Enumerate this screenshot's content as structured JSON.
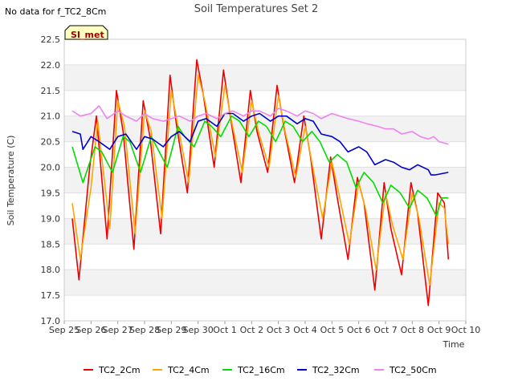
{
  "header": {
    "nodata_note": "No data for f_TC2_8Cm"
  },
  "badge": {
    "label": "SI_met",
    "bg": "#ffffc0",
    "text_color": "#990000"
  },
  "chart_data": {
    "type": "line",
    "title": "Soil Temperatures Set 2",
    "xlabel": "Time",
    "ylabel": "Soil Temperature (C)",
    "xlim": [
      0,
      15
    ],
    "ylim": [
      17.0,
      22.5
    ],
    "x_ticks": [
      {
        "value": 0,
        "label": "Sep 25"
      },
      {
        "value": 1,
        "label": "Sep 26"
      },
      {
        "value": 2,
        "label": "Sep 27"
      },
      {
        "value": 3,
        "label": "Sep 28"
      },
      {
        "value": 4,
        "label": "Sep 29"
      },
      {
        "value": 5,
        "label": "Sep 30"
      },
      {
        "value": 6,
        "label": "Oct 1"
      },
      {
        "value": 7,
        "label": "Oct 2"
      },
      {
        "value": 8,
        "label": "Oct 3"
      },
      {
        "value": 9,
        "label": "Oct 4"
      },
      {
        "value": 10,
        "label": "Oct 5"
      },
      {
        "value": 11,
        "label": "Oct 6"
      },
      {
        "value": 12,
        "label": "Oct 7"
      },
      {
        "value": 13,
        "label": "Oct 8"
      },
      {
        "value": 14,
        "label": "Oct 9"
      },
      {
        "value": 15,
        "label": "Oct 10"
      }
    ],
    "y_ticks": [
      "17.0",
      "17.5",
      "18.0",
      "18.5",
      "19.0",
      "19.5",
      "20.0",
      "20.5",
      "21.0",
      "21.5",
      "22.0",
      "22.5"
    ],
    "grid": "horizontal alternating bands",
    "legend_position": "bottom",
    "series": [
      {
        "name": "TC2_2Cm",
        "color": "#ee0000",
        "x": [
          0.3,
          0.55,
          0.95,
          1.2,
          1.6,
          1.95,
          2.2,
          2.6,
          2.95,
          3.2,
          3.6,
          3.95,
          4.2,
          4.6,
          4.95,
          5.2,
          5.6,
          5.95,
          6.2,
          6.6,
          6.95,
          7.2,
          7.6,
          7.95,
          8.2,
          8.6,
          8.95,
          9.2,
          9.6,
          9.95,
          10.2,
          10.6,
          10.95,
          11.2,
          11.6,
          11.95,
          12.2,
          12.6,
          12.95,
          13.2,
          13.6,
          13.95,
          14.2,
          14.35
        ],
        "y": [
          19.0,
          17.8,
          20.0,
          21.0,
          18.6,
          21.5,
          20.7,
          18.4,
          21.3,
          20.6,
          18.7,
          21.8,
          20.8,
          19.5,
          22.1,
          21.4,
          20.0,
          21.9,
          21.0,
          19.7,
          21.5,
          20.7,
          19.9,
          21.6,
          20.8,
          19.7,
          21.0,
          20.2,
          18.6,
          20.2,
          19.4,
          18.2,
          19.8,
          19.3,
          17.6,
          19.7,
          18.8,
          17.9,
          19.7,
          19.1,
          17.3,
          19.5,
          19.3,
          18.2
        ]
      },
      {
        "name": "TC2_4Cm",
        "color": "#ffa500",
        "x": [
          0.3,
          0.6,
          1.0,
          1.25,
          1.7,
          2.0,
          2.25,
          2.65,
          3.0,
          3.25,
          3.65,
          4.0,
          4.25,
          4.65,
          5.0,
          5.25,
          5.65,
          6.0,
          6.25,
          6.65,
          7.0,
          7.25,
          7.65,
          8.0,
          8.25,
          8.65,
          9.0,
          9.25,
          9.65,
          10.0,
          10.25,
          10.65,
          11.0,
          11.25,
          11.65,
          12.0,
          12.25,
          12.65,
          13.0,
          13.25,
          13.65,
          14.0,
          14.2,
          14.35
        ],
        "y": [
          19.3,
          18.2,
          19.6,
          20.9,
          18.8,
          21.3,
          20.8,
          18.7,
          21.1,
          20.7,
          19.0,
          21.5,
          20.8,
          19.7,
          21.8,
          21.3,
          20.2,
          21.6,
          20.9,
          19.9,
          21.3,
          20.7,
          20.0,
          21.4,
          20.7,
          19.8,
          20.8,
          20.1,
          19.0,
          20.1,
          19.5,
          18.5,
          19.7,
          19.2,
          18.0,
          19.5,
          18.9,
          18.2,
          19.5,
          19.0,
          17.7,
          19.3,
          19.2,
          18.5
        ]
      },
      {
        "name": "TC2_16Cm",
        "color": "#00dd00",
        "x": [
          0.3,
          0.7,
          1.15,
          1.4,
          1.8,
          2.2,
          2.45,
          2.85,
          3.25,
          3.45,
          3.85,
          4.25,
          4.5,
          4.85,
          5.25,
          5.5,
          5.85,
          6.25,
          6.55,
          6.9,
          7.25,
          7.55,
          7.9,
          8.25,
          8.55,
          8.9,
          9.25,
          9.55,
          9.9,
          10.2,
          10.55,
          10.9,
          11.2,
          11.55,
          11.9,
          12.2,
          12.55,
          12.9,
          13.2,
          13.55,
          13.9,
          14.1,
          14.35
        ],
        "y": [
          20.4,
          19.7,
          20.4,
          20.3,
          19.9,
          20.6,
          20.5,
          19.9,
          20.6,
          20.4,
          20.0,
          20.8,
          20.6,
          20.4,
          20.9,
          20.8,
          20.6,
          21.0,
          20.9,
          20.6,
          20.9,
          20.8,
          20.5,
          20.9,
          20.8,
          20.5,
          20.7,
          20.5,
          20.1,
          20.25,
          20.1,
          19.6,
          19.9,
          19.7,
          19.3,
          19.65,
          19.5,
          19.2,
          19.55,
          19.4,
          19.05,
          19.4,
          19.4
        ]
      },
      {
        "name": "TC2_32Cm",
        "color": "#0000cc",
        "x": [
          0.3,
          0.6,
          0.7,
          1.0,
          1.3,
          1.7,
          2.0,
          2.3,
          2.7,
          3.0,
          3.3,
          3.7,
          4.0,
          4.3,
          4.7,
          5.0,
          5.3,
          5.7,
          6.0,
          6.3,
          6.7,
          7.0,
          7.3,
          7.7,
          8.0,
          8.3,
          8.7,
          9.0,
          9.3,
          9.6,
          10.0,
          10.3,
          10.6,
          11.0,
          11.3,
          11.6,
          12.0,
          12.3,
          12.6,
          12.9,
          13.2,
          13.6,
          13.7,
          13.85,
          14.35
        ],
        "y": [
          20.7,
          20.65,
          20.35,
          20.6,
          20.5,
          20.35,
          20.6,
          20.65,
          20.35,
          20.6,
          20.55,
          20.4,
          20.6,
          20.7,
          20.5,
          20.9,
          20.95,
          20.8,
          21.05,
          21.05,
          20.9,
          21.0,
          21.05,
          20.9,
          21.0,
          21.0,
          20.85,
          20.95,
          20.9,
          20.65,
          20.6,
          20.5,
          20.3,
          20.4,
          20.3,
          20.05,
          20.15,
          20.1,
          20.0,
          19.95,
          20.05,
          19.95,
          19.85,
          19.85,
          19.9
        ]
      },
      {
        "name": "TC2_50Cm",
        "color": "#ee82ee",
        "x": [
          0.3,
          0.6,
          1.0,
          1.3,
          1.6,
          2.0,
          2.3,
          2.7,
          3.0,
          3.3,
          3.7,
          4.0,
          4.3,
          4.7,
          5.0,
          5.3,
          5.7,
          6.0,
          6.3,
          6.7,
          7.0,
          7.3,
          7.7,
          8.0,
          8.3,
          8.7,
          9.0,
          9.3,
          9.6,
          10.0,
          10.3,
          10.6,
          11.0,
          11.3,
          11.7,
          12.0,
          12.3,
          12.6,
          13.0,
          13.3,
          13.6,
          13.8,
          14.0,
          14.35
        ],
        "y": [
          21.1,
          21.0,
          21.05,
          21.2,
          20.95,
          21.1,
          21.0,
          20.9,
          21.05,
          20.95,
          20.9,
          20.95,
          21.0,
          20.9,
          21.0,
          21.05,
          20.95,
          21.05,
          21.1,
          21.0,
          21.1,
          21.1,
          21.0,
          21.15,
          21.1,
          21.0,
          21.1,
          21.05,
          20.95,
          21.05,
          21.0,
          20.95,
          20.9,
          20.85,
          20.8,
          20.75,
          20.75,
          20.65,
          20.7,
          20.6,
          20.55,
          20.6,
          20.5,
          20.45
        ]
      }
    ]
  }
}
